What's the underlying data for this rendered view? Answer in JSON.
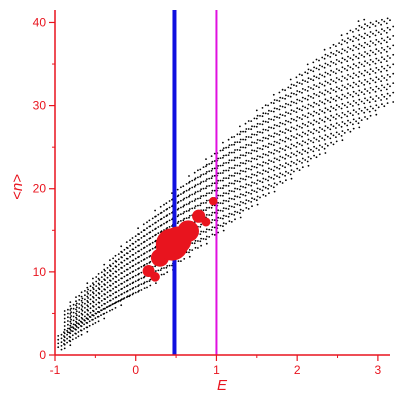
{
  "chart_data": {
    "type": "scatter",
    "title": "",
    "xlabel": "E",
    "ylabel": "<n>",
    "xlim": [
      -1,
      3.15
    ],
    "ylim": [
      0,
      41.5
    ],
    "xticks": [
      -1,
      0,
      1,
      2,
      3
    ],
    "yticks": [
      0,
      10,
      20,
      30,
      40
    ],
    "grid": false,
    "axis_color": "#e8141e",
    "vertical_lines": [
      {
        "x": 0.48,
        "color": "#1010e0"
      },
      {
        "x": 1.0,
        "color": "#e010e0"
      }
    ],
    "series": [
      {
        "color": "#e8141e",
        "points": [
          {
            "x": 0.3,
            "y": 11.7,
            "size": 1.0
          },
          {
            "x": 0.38,
            "y": 12.8,
            "size": 1.2
          },
          {
            "x": 0.45,
            "y": 13.3,
            "size": 2.2
          },
          {
            "x": 0.52,
            "y": 13.8,
            "size": 1.8
          },
          {
            "x": 0.65,
            "y": 14.9,
            "size": 1.3
          },
          {
            "x": 0.78,
            "y": 16.7,
            "size": 0.6
          },
          {
            "x": 0.16,
            "y": 10.1,
            "size": 0.5
          },
          {
            "x": 0.24,
            "y": 9.4,
            "size": 0.3
          },
          {
            "x": 0.87,
            "y": 16.0,
            "size": 0.25
          },
          {
            "x": 0.96,
            "y": 18.5,
            "size": 0.2
          }
        ]
      }
    ],
    "bands": {
      "color": "#000000",
      "count": 34,
      "emin": -0.88,
      "n_at_emin": 0.8,
      "nmax": 40.5,
      "base_line": {
        "e0": -0.9,
        "n0": 0.5,
        "e1": 3.0,
        "n1": 28.5
      },
      "fan": {
        "slope0": 0.5,
        "slope_step": 0.1,
        "curvature": 0.45
      }
    }
  }
}
